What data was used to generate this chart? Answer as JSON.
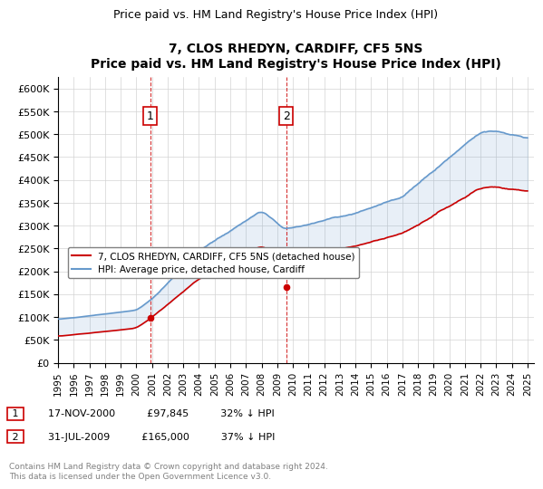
{
  "title": "7, CLOS RHEDYN, CARDIFF, CF5 5NS",
  "subtitle": "Price paid vs. HM Land Registry's House Price Index (HPI)",
  "legend_entry1": "7, CLOS RHEDYN, CARDIFF, CF5 5NS (detached house)",
  "legend_entry2": "HPI: Average price, detached house, Cardiff",
  "annotation1_label": "1",
  "annotation1_date": "2000-11-17",
  "annotation1_text": "17-NOV-2000",
  "annotation1_price": "£97,845",
  "annotation1_hpi": "32% ↓ HPI",
  "annotation2_label": "2",
  "annotation2_date": "2009-07-31",
  "annotation2_text": "31-JUL-2009",
  "annotation2_price": "£165,000",
  "annotation2_hpi": "37% ↓ HPI",
  "footer": "Contains HM Land Registry data © Crown copyright and database right 2024.\nThis data is licensed under the Open Government Licence v3.0.",
  "hpi_color": "#6699cc",
  "price_color": "#cc0000",
  "annotation_box_color": "#cc0000",
  "background_fill": "#ddeeff",
  "ylim": [
    0,
    625000
  ],
  "yticks": [
    0,
    50000,
    100000,
    150000,
    200000,
    250000,
    300000,
    350000,
    400000,
    450000,
    500000,
    550000,
    600000
  ],
  "ylabel_format": "£{0}K"
}
